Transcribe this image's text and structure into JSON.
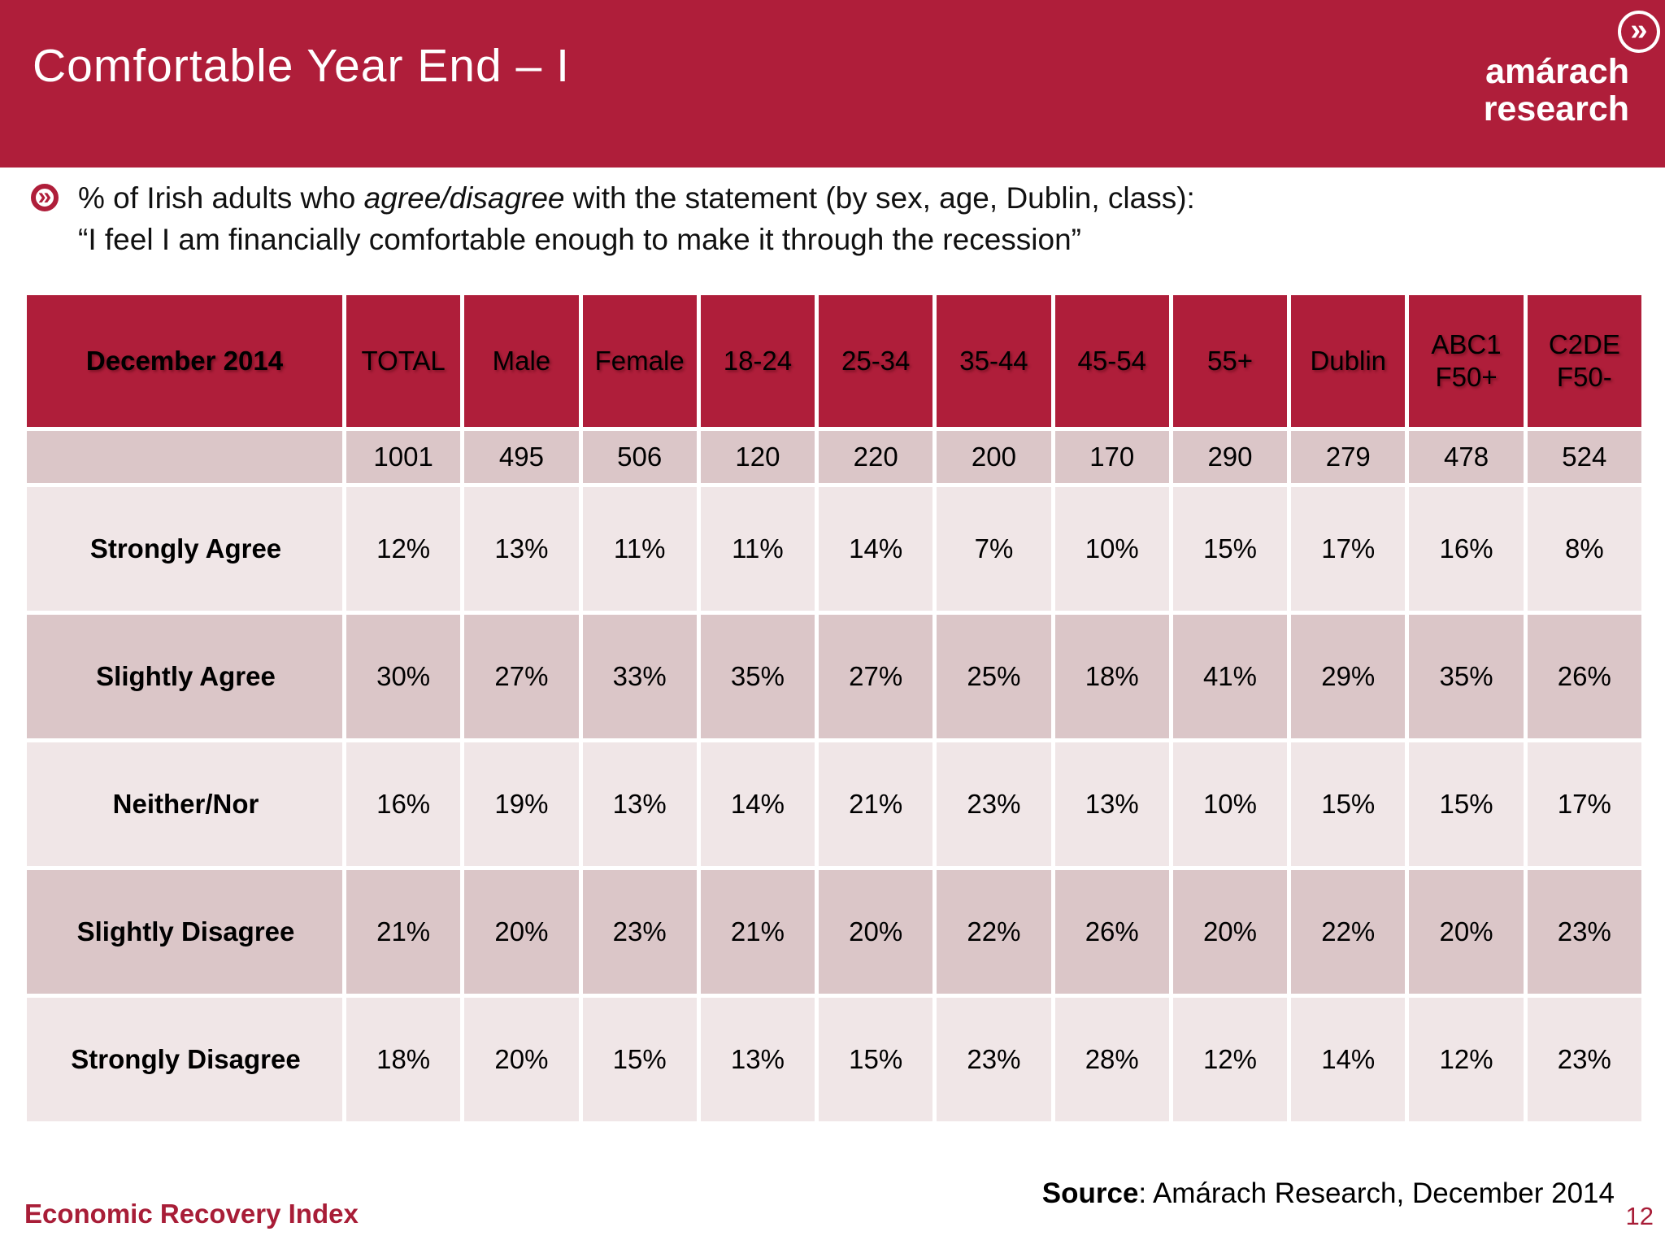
{
  "header": {
    "title": "Comfortable Year End – I",
    "logo_line1": "amárach",
    "logo_line2": "research"
  },
  "icons": {
    "chevron": "»"
  },
  "bullet": {
    "line1_pre": "% of Irish adults who ",
    "line1_italic": "agree/disagree",
    "line1_post": " with the statement (by sex, age, Dublin, class):",
    "line2": "“I feel I am financially comfortable enough to make it through the recession”"
  },
  "chart_data": {
    "type": "table",
    "title": "December 2014",
    "corner_label": "December 2014",
    "columns": [
      "TOTAL",
      "Male",
      "Female",
      "18-24",
      "25-34",
      "35-44",
      "45-54",
      "55+",
      "Dublin",
      "ABC1\nF50+",
      "C2DE\nF50-"
    ],
    "sample_sizes": [
      "1001",
      "495",
      "506",
      "120",
      "220",
      "200",
      "170",
      "290",
      "279",
      "478",
      "524"
    ],
    "rows": [
      {
        "label": "Strongly Agree",
        "values": [
          "12%",
          "13%",
          "11%",
          "11%",
          "14%",
          "7%",
          "10%",
          "15%",
          "17%",
          "16%",
          "8%"
        ]
      },
      {
        "label": "Slightly Agree",
        "values": [
          "30%",
          "27%",
          "33%",
          "35%",
          "27%",
          "25%",
          "18%",
          "41%",
          "29%",
          "35%",
          "26%"
        ]
      },
      {
        "label": "Neither/Nor",
        "values": [
          "16%",
          "19%",
          "13%",
          "14%",
          "21%",
          "23%",
          "13%",
          "10%",
          "15%",
          "15%",
          "17%"
        ]
      },
      {
        "label": "Slightly Disagree",
        "values": [
          "21%",
          "20%",
          "23%",
          "21%",
          "20%",
          "22%",
          "26%",
          "20%",
          "22%",
          "20%",
          "23%"
        ]
      },
      {
        "label": "Strongly Disagree",
        "values": [
          "18%",
          "20%",
          "15%",
          "13%",
          "15%",
          "23%",
          "28%",
          "12%",
          "14%",
          "12%",
          "23%"
        ]
      }
    ]
  },
  "footer": {
    "left": "Economic Recovery Index",
    "source_label": "Source",
    "source_text": ": Amárach Research, December 2014",
    "page_number": "12"
  },
  "colors": {
    "brand_red": "#AF1E3A",
    "footer_red": "#A81D37",
    "row_dark_pink": "#DBC6C8",
    "row_light_pink": "#F0E6E7"
  }
}
